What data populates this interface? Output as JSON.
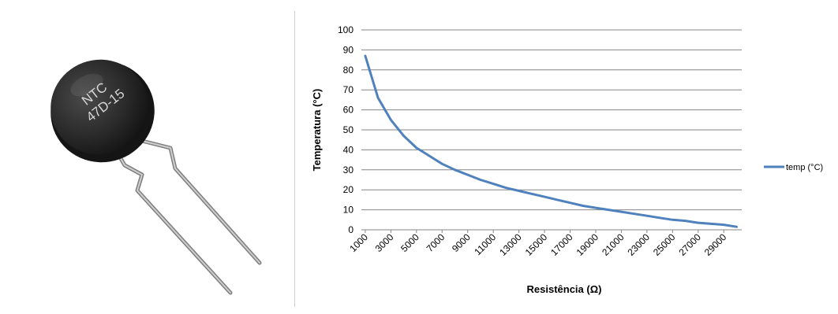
{
  "photo": {
    "component_marking_line1": "NTC",
    "component_marking_line2": "47D-15",
    "body_color": "#2a2a2a",
    "lead_color": "#9a9a9a"
  },
  "chart_data": {
    "type": "line",
    "title": "",
    "xlabel": "Resistência (Ω)",
    "ylabel": "Temperatura (°C)",
    "ylim": [
      0,
      100
    ],
    "yticks": [
      0,
      10,
      20,
      30,
      40,
      50,
      60,
      70,
      80,
      90,
      100
    ],
    "xtick_labels": [
      "1000",
      "3000",
      "5000",
      "7000",
      "9000",
      "11000",
      "13000",
      "15000",
      "17000",
      "19000",
      "21000",
      "23000",
      "25000",
      "27000",
      "29000"
    ],
    "x": [
      1000,
      2000,
      3000,
      4000,
      5000,
      6000,
      7000,
      8000,
      9000,
      10000,
      11000,
      12000,
      13000,
      14000,
      15000,
      16000,
      17000,
      18000,
      19000,
      20000,
      21000,
      22000,
      23000,
      24000,
      25000,
      26000,
      27000,
      28000,
      29000,
      30000
    ],
    "series": [
      {
        "name": "temp (°C)",
        "color": "#4f81bd",
        "values": [
          87,
          66,
          55,
          47,
          41,
          37,
          33,
          30,
          27.5,
          25,
          23,
          21,
          19.5,
          18,
          16.5,
          15,
          13.5,
          12,
          11,
          10,
          9,
          8,
          7,
          6,
          5,
          4.5,
          3.5,
          3,
          2.5,
          1.5
        ]
      }
    ],
    "grid": true,
    "legend_position": "right"
  }
}
